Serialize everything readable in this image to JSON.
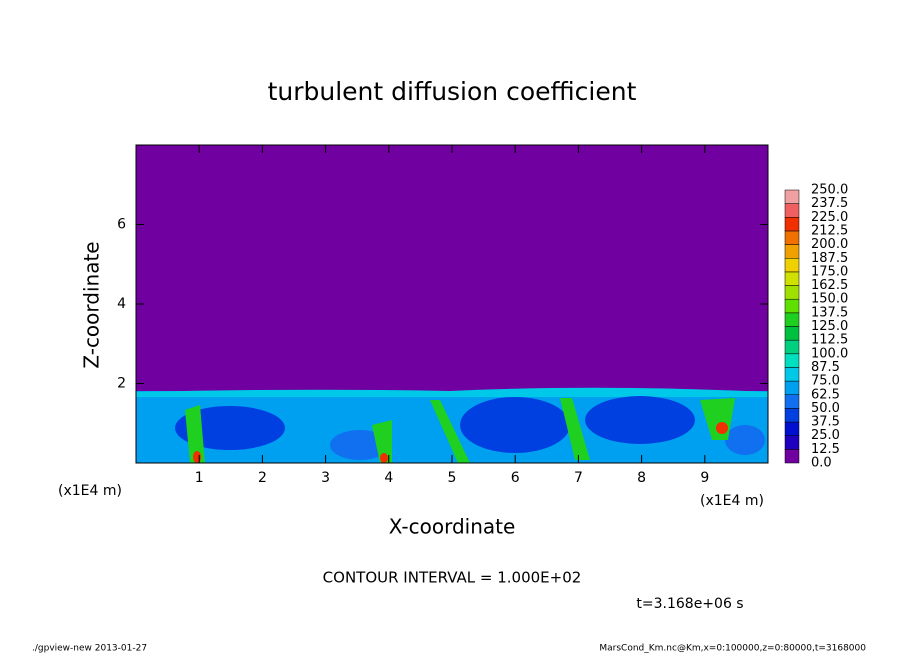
{
  "chart_data": {
    "type": "contour",
    "title": "turbulent diffusion coefficient",
    "xlabel": "X-coordinate",
    "ylabel": "Z-coordinate",
    "x_unit": "(x1E4 m)",
    "x_unit_right": "(x1E4 m)",
    "xlim": [
      0,
      10
    ],
    "ylim": [
      0,
      8
    ],
    "xticks": [
      1,
      2,
      3,
      4,
      5,
      6,
      7,
      8,
      9
    ],
    "yticks": [
      2,
      4,
      6
    ],
    "contour_interval": "CONTOUR INTERVAL = 1.000E+02",
    "time": "t=3.168e+06 s",
    "footer_left": "./gpview-new  2013-01-27",
    "footer_right": "MarsCond_Km.nc@Km,x=0:100000,z=0:80000,t=3168000",
    "colorbar": {
      "levels": [
        {
          "value": 0,
          "label": "0.0"
        },
        {
          "value": 12.5,
          "label": "12.5"
        },
        {
          "value": 25,
          "label": "25.0"
        },
        {
          "value": 37.5,
          "label": "37.5"
        },
        {
          "value": 50,
          "label": "50.0"
        },
        {
          "value": 62.5,
          "label": "62.5"
        },
        {
          "value": 75,
          "label": "75.0"
        },
        {
          "value": 87.5,
          "label": "87.5"
        },
        {
          "value": 100,
          "label": "100.0"
        },
        {
          "value": 112.5,
          "label": "112.5"
        },
        {
          "value": 125,
          "label": "125.0"
        },
        {
          "value": 137.5,
          "label": "137.5"
        },
        {
          "value": 150,
          "label": "150.0"
        },
        {
          "value": 162.5,
          "label": "162.5"
        },
        {
          "value": 175,
          "label": "175.0"
        },
        {
          "value": 187.5,
          "label": "187.5"
        },
        {
          "value": 200,
          "label": "200.0"
        },
        {
          "value": 212.5,
          "label": "212.5"
        },
        {
          "value": 225,
          "label": "225.0"
        },
        {
          "value": 237.5,
          "label": "237.5"
        },
        {
          "value": 250,
          "label": "250.0"
        }
      ],
      "colors": [
        "#7000a0",
        "#2000c0",
        "#0010d0",
        "#0040e0",
        "#1070f0",
        "#00a0f0",
        "#00c8e8",
        "#00e0c0",
        "#00d080",
        "#00c040",
        "#20d020",
        "#60e000",
        "#a0e000",
        "#d0e000",
        "#f0d000",
        "#f0a000",
        "#f07000",
        "#f03000",
        "#f06060",
        "#f0a0a0"
      ]
    }
  }
}
